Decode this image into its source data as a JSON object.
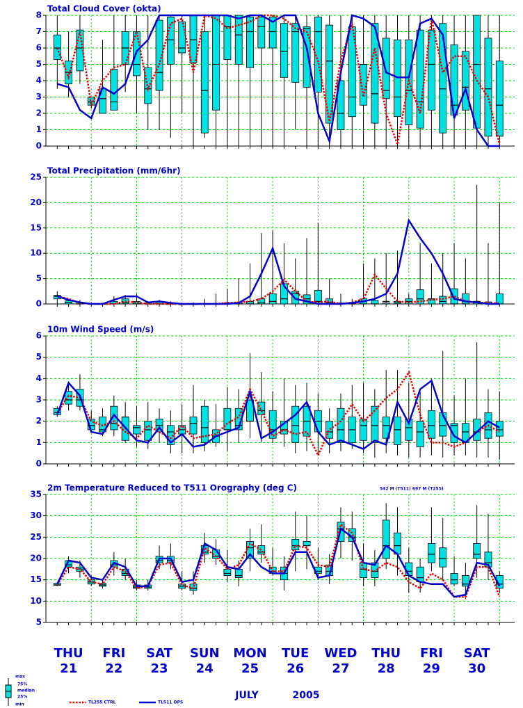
{
  "time": {
    "x": [
      6,
      12,
      18,
      24,
      30,
      36,
      42,
      48,
      54,
      60,
      66,
      72,
      78,
      84,
      90,
      96,
      102,
      108,
      114,
      120,
      126,
      132,
      138,
      144,
      150,
      156,
      162,
      168,
      174,
      180,
      186,
      192,
      198,
      204,
      210,
      216,
      222,
      228,
      234,
      240
    ],
    "xlim": [
      0,
      248
    ],
    "days": [
      {
        "name": "THU",
        "date": "21",
        "color": "#0000cc"
      },
      {
        "name": "FRI",
        "date": "22",
        "color": "#0000cc"
      },
      {
        "name": "SAT",
        "date": "23",
        "color": "#0000cc"
      },
      {
        "name": "SUN",
        "date": "24",
        "color": "#ee0000"
      },
      {
        "name": "MON",
        "date": "25",
        "color": "#0000cc"
      },
      {
        "name": "TUE",
        "date": "26",
        "color": "#0000cc"
      },
      {
        "name": "WED",
        "date": "27",
        "color": "#0000cc"
      },
      {
        "name": "THU",
        "date": "28",
        "color": "#0000cc"
      },
      {
        "name": "FRI",
        "date": "29",
        "color": "#0000cc"
      },
      {
        "name": "SAT",
        "date": "30",
        "color": "#0000cc"
      }
    ],
    "month": "JULY",
    "year": "2005"
  },
  "legend": {
    "box": [
      "max",
      "75%",
      "median",
      "25%",
      "min"
    ],
    "box_color": "#00e0e0",
    "lines": [
      {
        "name": "TL255 CTRL",
        "color": "#ee0000",
        "dashed": true
      },
      {
        "name": "TL511 OPS",
        "color": "#0000cc",
        "dashed": false
      }
    ]
  },
  "chart_data": [
    {
      "type": "box",
      "title": "Total Cloud Cover (okta)",
      "ylim": [
        0,
        8
      ],
      "yticks": [
        0,
        1,
        2,
        3,
        4,
        5,
        6,
        7,
        8
      ],
      "grid": true,
      "min": [
        3.5,
        3.0,
        3.8,
        2.3,
        2.0,
        2.5,
        3.3,
        2.0,
        1.0,
        1.0,
        0.5,
        2.0,
        0,
        0.5,
        0,
        0,
        0,
        0,
        0,
        0,
        0,
        1.0,
        0,
        0,
        0,
        0,
        0,
        0,
        0,
        0,
        0,
        0,
        0,
        0,
        0,
        0,
        0,
        0,
        0,
        0
      ],
      "q25": [
        5.3,
        3.8,
        4.6,
        2.5,
        2.0,
        2.2,
        5.0,
        4.3,
        2.6,
        3.4,
        5.0,
        5.7,
        5.1,
        0.8,
        2.2,
        5.3,
        5.0,
        4.8,
        6.0,
        6.0,
        4.2,
        3.9,
        3.6,
        3.3,
        1.4,
        1.0,
        1.8,
        2.5,
        1.4,
        2.9,
        1.8,
        1.3,
        1.1,
        2.2,
        0.8,
        1.9,
        2.2,
        1.1,
        0.6,
        0.6
      ],
      "median": [
        6.0,
        4.5,
        6.0,
        2.7,
        2.9,
        2.7,
        6.0,
        5.0,
        3.5,
        4.5,
        6.5,
        6.0,
        6.5,
        3.4,
        5.0,
        7.3,
        6.8,
        7.0,
        7.3,
        7.0,
        5.8,
        7.0,
        7.2,
        7.0,
        5.2,
        2.0,
        3.0,
        5.0,
        3.2,
        3.4,
        3.0,
        3.4,
        2.7,
        5.0,
        3.5,
        2.5,
        3.6,
        5.0,
        3.5,
        2.5
      ],
      "q75": [
        6.8,
        5.2,
        7.1,
        3.0,
        3.5,
        4.7,
        7.0,
        7.0,
        4.8,
        7.7,
        7.9,
        7.6,
        8,
        7,
        8,
        8,
        8,
        7.9,
        7.9,
        7.9,
        7.5,
        7.5,
        7.3,
        7.9,
        7.4,
        4.0,
        7.3,
        5.0,
        7.5,
        6.6,
        6.5,
        6.5,
        7.1,
        7.1,
        7.5,
        6.2,
        5.8,
        8,
        6.6,
        5.2
      ],
      "max": [
        8,
        7,
        8,
        3,
        6.5,
        8,
        8,
        8,
        8,
        8,
        8,
        8,
        8,
        8,
        8,
        8,
        8,
        8,
        8,
        8,
        8,
        8,
        8,
        8,
        8,
        8,
        8,
        8,
        8,
        8,
        8,
        8,
        8,
        8,
        8,
        8,
        8,
        8,
        8,
        8
      ],
      "series": [
        {
          "values": [
            6.0,
            4.2,
            7.0,
            2.5,
            4.0,
            4.8,
            5.0,
            7.0,
            3.5,
            5.0,
            7.5,
            7.8,
            4.5,
            8,
            7.8,
            7.2,
            7.4,
            7.6,
            8,
            8,
            7.8,
            7.2,
            7.0,
            5.2,
            1.5,
            5.2,
            7.5,
            3.0,
            6.0,
            2.0,
            0.1,
            4.0,
            2.0,
            7.8,
            4.5,
            5.5,
            5.5,
            4.0,
            3.0,
            0.1
          ]
        },
        {
          "values": [
            3.8,
            3.6,
            2.2,
            1.7,
            3.6,
            3.2,
            3.8,
            5.8,
            6.5,
            8,
            8,
            8,
            8,
            8,
            8,
            8,
            7.8,
            8,
            8,
            7.6,
            8,
            8,
            6.0,
            2.0,
            0.3,
            4.5,
            8,
            7.8,
            7.3,
            4.5,
            4.2,
            4.2,
            7.5,
            7.8,
            6.8,
            1.7,
            3.5,
            1.0,
            0,
            0
          ]
        }
      ]
    },
    {
      "type": "box",
      "title": "Total Precipitation (mm/6hr)",
      "ylim": [
        0,
        25
      ],
      "yticks": [
        0,
        5,
        10,
        15,
        20,
        25
      ],
      "grid": true,
      "min": [
        0,
        0,
        0,
        0,
        0,
        0,
        0,
        0,
        0,
        0,
        0,
        0,
        0,
        0,
        0,
        0,
        0,
        0,
        0,
        0,
        0,
        0,
        0,
        0,
        0,
        0,
        0,
        0,
        0,
        0,
        0,
        0,
        0,
        0,
        0,
        0,
        0,
        0,
        0,
        0
      ],
      "q25": [
        1.0,
        0,
        0,
        0,
        0,
        0,
        0,
        0,
        0,
        0,
        0,
        0,
        0,
        0,
        0,
        0,
        0,
        0,
        0,
        0,
        0,
        0,
        0,
        0,
        0,
        0,
        0,
        0,
        0,
        0,
        0,
        0,
        0,
        0,
        0,
        0,
        0,
        0,
        0,
        0
      ],
      "median": [
        1.5,
        0.3,
        0,
        0,
        0,
        0,
        0.2,
        0,
        0,
        0,
        0,
        0,
        0,
        0,
        0,
        0,
        0,
        0,
        0.2,
        0.5,
        1,
        2,
        1,
        0.5,
        0.3,
        0,
        0,
        0,
        0,
        0.5,
        0.2,
        0.5,
        1.0,
        1.0,
        0.5,
        0,
        0,
        0.5,
        0,
        0
      ],
      "q75": [
        1.7,
        0.6,
        0.3,
        0.1,
        0.1,
        0.5,
        1.0,
        0.5,
        0.2,
        0.4,
        0.1,
        0,
        0,
        0.1,
        0.1,
        0.2,
        0.3,
        0.5,
        1.0,
        2.0,
        4.0,
        2.5,
        1.8,
        2.7,
        1.0,
        0.2,
        0.2,
        1.0,
        0.7,
        0.2,
        0.5,
        1.0,
        2.8,
        1.0,
        1.5,
        3.0,
        2.0,
        0.5,
        0.4,
        2.0
      ],
      "max": [
        2.5,
        1.0,
        0.8,
        0.3,
        0.2,
        1.5,
        1.8,
        2.0,
        0.5,
        0.8,
        0.5,
        0.2,
        0.3,
        1.0,
        2.0,
        3.0,
        5.0,
        8.0,
        14.0,
        14.5,
        12,
        9,
        13,
        16,
        5,
        2,
        1,
        8,
        9,
        10,
        10.5,
        2,
        12,
        8,
        10,
        12,
        9,
        23.5,
        12,
        20
      ],
      "series": [
        {
          "values": [
            1.5,
            1.0,
            0.2,
            0,
            0,
            0,
            0.5,
            0.3,
            0,
            0,
            0,
            0,
            0,
            0,
            0,
            0.2,
            0.3,
            0.5,
            1.0,
            2.5,
            4.8,
            2.5,
            0.5,
            0.3,
            0.5,
            0,
            0.3,
            1.0,
            5.8,
            3.0,
            0.5,
            0.3,
            0.5,
            0.8,
            1.0,
            1.5,
            0.5,
            0.3,
            0.2,
            0.1
          ]
        },
        {
          "values": [
            1.5,
            0.8,
            0.3,
            0,
            0,
            0.8,
            1.5,
            1.5,
            0.3,
            0.5,
            0.2,
            0,
            0,
            0,
            0,
            0,
            0.2,
            1.5,
            6.0,
            11.0,
            3.5,
            1.0,
            0.5,
            0,
            0,
            0,
            0.2,
            0.5,
            1.0,
            2.0,
            6.0,
            16.5,
            13.0,
            10.0,
            6.0,
            1.0,
            0.5,
            0.3,
            0,
            0
          ]
        }
      ]
    },
    {
      "type": "box",
      "title": "10m Wind Speed (m/s)",
      "ylim": [
        0,
        6
      ],
      "yticks": [
        0,
        1,
        2,
        3,
        4,
        5,
        6
      ],
      "grid": true,
      "min": [
        2.2,
        2.5,
        2.5,
        1.5,
        1.3,
        1.3,
        1.0,
        0.8,
        0.7,
        1.0,
        0.5,
        0.5,
        0.5,
        0.6,
        0.8,
        0.6,
        1.0,
        1.2,
        1.0,
        1.0,
        0.8,
        0.5,
        0.6,
        0.4,
        0.5,
        0.6,
        0.7,
        0.5,
        0.3,
        0.5,
        0.4,
        0.3,
        0.3,
        0.4,
        0.3,
        0.4,
        0.4,
        0.3,
        0.3,
        0.2
      ],
      "q25": [
        2.3,
        2.8,
        2.7,
        1.6,
        1.5,
        1.6,
        1.1,
        1.4,
        1.1,
        1.5,
        0.9,
        1.4,
        1.4,
        1.0,
        1.0,
        1.6,
        1.6,
        2.0,
        2.3,
        1.2,
        1.4,
        1.0,
        1.3,
        1.5,
        1.2,
        1.0,
        1.0,
        1.1,
        1.0,
        1.2,
        0.9,
        1.1,
        0.8,
        1.2,
        1.3,
        1.0,
        1.0,
        1.1,
        1.2,
        1.3
      ],
      "median": [
        2.4,
        3.0,
        3.0,
        1.8,
        1.6,
        1.9,
        2.2,
        1.7,
        1.6,
        1.8,
        1.5,
        1.6,
        1.9,
        1.7,
        1.3,
        1.6,
        1.8,
        2.0,
        2.5,
        1.6,
        1.6,
        1.8,
        2.0,
        2.0,
        1.5,
        1.6,
        1.6,
        1.8,
        1.8,
        1.8,
        1.6,
        1.7,
        1.5,
        1.8,
        1.8,
        1.8,
        1.5,
        1.5,
        1.6,
        1.6
      ],
      "q75": [
        2.6,
        3.4,
        3.5,
        2.1,
        2.2,
        2.7,
        2.2,
        1.8,
        2.0,
        2.1,
        1.8,
        1.8,
        2.2,
        2.7,
        1.6,
        2.6,
        2.6,
        3.0,
        2.9,
        2.5,
        2.0,
        2.7,
        2.7,
        2.5,
        2.0,
        2.6,
        2.2,
        2.1,
        2.7,
        2.2,
        2.2,
        2.1,
        2.0,
        2.5,
        2.4,
        1.9,
        1.9,
        2.1,
        2.4,
        2.0
      ],
      "max": [
        2.7,
        3.8,
        4.2,
        2.5,
        2.6,
        3.2,
        2.9,
        2.7,
        2.9,
        2.6,
        2.5,
        2.8,
        3.7,
        3.0,
        2.8,
        3.6,
        3.5,
        5.2,
        4.3,
        3.4,
        4.0,
        3.7,
        3.8,
        3.3,
        2.6,
        3.3,
        3.7,
        3.8,
        3.5,
        4.4,
        4.4,
        3.8,
        3.4,
        4.0,
        5.3,
        3.2,
        4.0,
        5.7,
        3.5,
        3.4
      ],
      "series": [
        {
          "values": [
            2.4,
            3.2,
            3.1,
            2.0,
            1.8,
            2.0,
            1.5,
            1.2,
            1.8,
            1.5,
            1.2,
            1.8,
            1.2,
            1.3,
            1.4,
            1.9,
            2.2,
            3.5,
            2.5,
            1.3,
            1.6,
            1.4,
            1.5,
            0.4,
            1.6,
            2.0,
            2.8,
            2.0,
            2.5,
            3.1,
            3.5,
            4.3,
            2.3,
            1.0,
            1.0,
            0.8,
            1.0,
            1.5,
            1.8,
            1.5
          ]
        },
        {
          "values": [
            2.3,
            3.8,
            3.2,
            1.5,
            1.4,
            2.3,
            1.7,
            1.1,
            1.0,
            1.7,
            1.0,
            1.4,
            0.8,
            0.9,
            1.3,
            1.5,
            1.7,
            3.4,
            1.2,
            1.5,
            1.9,
            2.3,
            2.9,
            1.5,
            0.9,
            1.1,
            0.9,
            0.7,
            1.1,
            0.9,
            2.9,
            1.9,
            3.5,
            3.9,
            2.3,
            1.3,
            1.0,
            1.5,
            2.0,
            1.7
          ]
        }
      ]
    },
    {
      "type": "box",
      "title": "2m Temperature Reduced to T511 Orography (deg C)",
      "note": "542 M (T511) 697 M (T255)",
      "ylim": [
        5,
        35
      ],
      "yticks": [
        5,
        10,
        15,
        20,
        25,
        30,
        35
      ],
      "grid": true,
      "min": [
        13.5,
        16.5,
        15.5,
        13.5,
        13.0,
        16.0,
        15.0,
        12.5,
        12.5,
        17.5,
        17.5,
        12.5,
        11.5,
        19.0,
        18.5,
        14.5,
        13.5,
        17.0,
        19.0,
        16.0,
        12.5,
        17.0,
        17.5,
        15.0,
        14.0,
        20.0,
        19.5,
        13.5,
        13.5,
        17.5,
        16.0,
        12.0,
        12.0,
        17.0,
        15.0,
        13.5,
        10.5,
        15.5,
        15.0,
        12.0
      ],
      "q25": [
        13.7,
        18.0,
        17.0,
        14.0,
        13.5,
        18.0,
        16.0,
        13.0,
        13.0,
        19.0,
        19.0,
        13.0,
        12.5,
        21.0,
        20.0,
        16.0,
        15.5,
        20.0,
        21.0,
        16.5,
        15.0,
        22.0,
        23.0,
        16.5,
        16.0,
        24.0,
        24.0,
        15.5,
        15.5,
        20.0,
        21.0,
        16.0,
        14.5,
        19.0,
        18.0,
        14.0,
        13.5,
        20.0,
        18.0,
        13.0
      ],
      "median": [
        13.8,
        18.5,
        17.5,
        14.5,
        13.8,
        18.5,
        16.5,
        13.3,
        13.3,
        19.5,
        19.5,
        13.5,
        13.0,
        21.5,
        20.5,
        16.5,
        16.0,
        22.5,
        21.5,
        17.0,
        16.5,
        23.0,
        23.0,
        17.0,
        17.0,
        27.0,
        25.0,
        17.5,
        17.0,
        23.0,
        23.0,
        17.0,
        15.5,
        21.0,
        20.0,
        15.0,
        14.0,
        21.0,
        19.0,
        14.0
      ],
      "q75": [
        14.2,
        19.5,
        18.0,
        15.0,
        14.2,
        19.5,
        17.5,
        13.8,
        13.8,
        20.5,
        20.5,
        14.0,
        14.0,
        23.0,
        22.0,
        17.5,
        17.5,
        24.0,
        23.0,
        18.0,
        18.0,
        24.5,
        24.0,
        18.0,
        18.5,
        28.5,
        27.0,
        19.0,
        19.0,
        29.0,
        26.0,
        19.0,
        18.0,
        23.5,
        22.5,
        16.5,
        16.0,
        23.5,
        21.5,
        16.0
      ],
      "max": [
        14.5,
        20.5,
        19.5,
        16.0,
        15.0,
        21.5,
        20.0,
        15.0,
        15.0,
        23.0,
        23.5,
        17.0,
        17.0,
        26.0,
        24.5,
        22.0,
        19.5,
        27.0,
        28.0,
        22.5,
        20.5,
        31.0,
        30.0,
        22.5,
        21.0,
        32.0,
        31.0,
        23.5,
        22.0,
        33.0,
        32.0,
        22.5,
        20.0,
        32.0,
        29.5,
        20.5,
        19.0,
        32.5,
        30.5,
        17.0
      ],
      "series": [
        {
          "values": [
            13.8,
            18.0,
            17.5,
            14.5,
            14.0,
            18.0,
            17.0,
            13.0,
            13.5,
            18.5,
            19.0,
            13.8,
            13.0,
            22.5,
            20.5,
            17.5,
            18.5,
            23.5,
            22.0,
            17.0,
            17.0,
            23.0,
            22.5,
            18.5,
            18.0,
            28.0,
            26.0,
            17.5,
            17.0,
            19.0,
            18.0,
            14.5,
            13.0,
            16.5,
            15.0,
            11.0,
            11.0,
            18.0,
            18.0,
            11.0
          ]
        },
        {
          "values": [
            14.0,
            19.5,
            19.0,
            15.5,
            15.0,
            19.0,
            18.0,
            13.5,
            13.5,
            20.0,
            20.0,
            14.5,
            15.0,
            23.5,
            22.0,
            18.0,
            17.5,
            21.0,
            18.0,
            16.5,
            16.5,
            21.5,
            21.5,
            15.5,
            16.0,
            27.0,
            25.0,
            19.0,
            18.5,
            23.0,
            21.0,
            16.0,
            14.5,
            14.0,
            14.0,
            11.0,
            11.5,
            19.0,
            18.5,
            13.5
          ]
        }
      ]
    }
  ]
}
